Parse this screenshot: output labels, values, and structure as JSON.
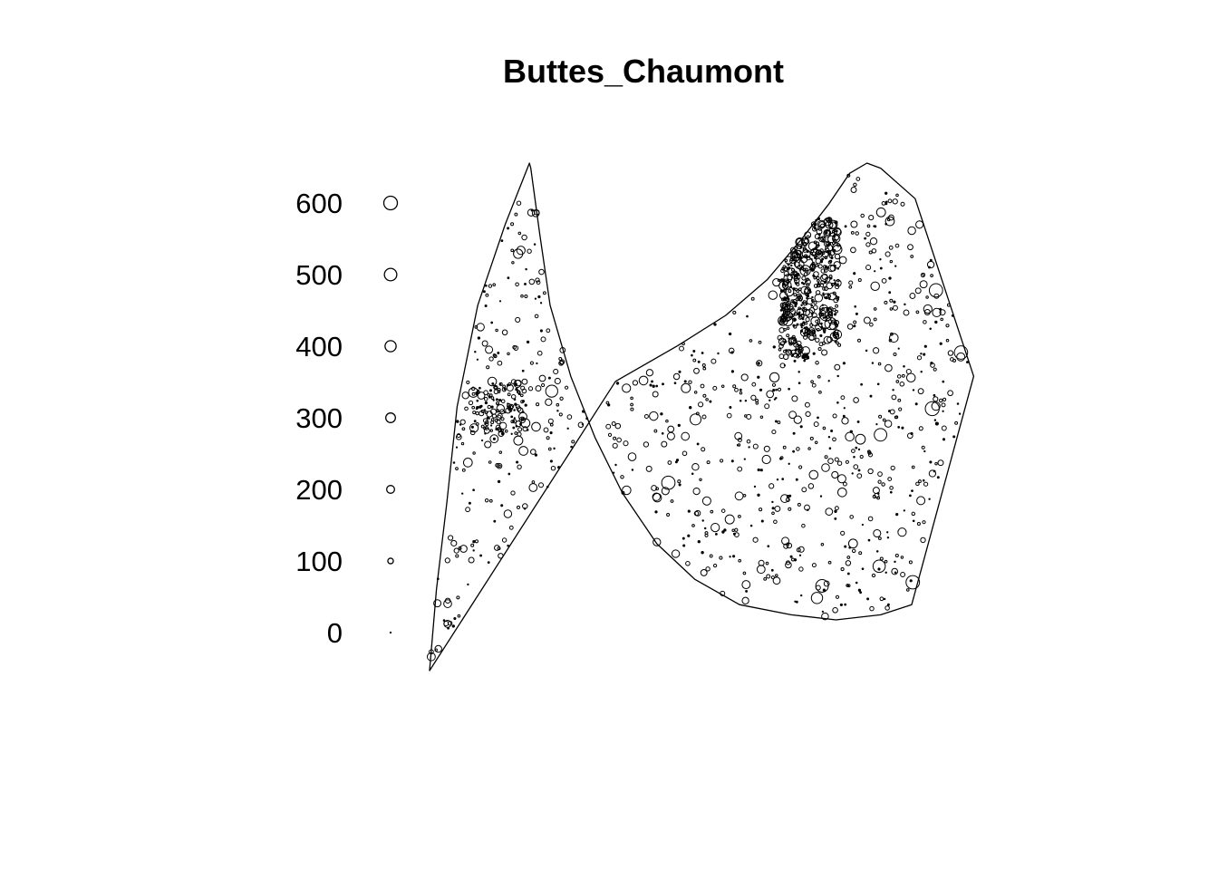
{
  "chart_data": {
    "type": "scatter",
    "title": "Buttes_Chaumont",
    "marks": "proportional circles (tree diameter)",
    "legend": {
      "placement": "left",
      "values": [
        0,
        100,
        200,
        300,
        400,
        500,
        600
      ],
      "labels": [
        "0",
        "100",
        "200",
        "300",
        "400",
        "500",
        "600"
      ]
    },
    "window_outline": [
      [
        0.0,
        0.0
      ],
      [
        0.01,
        0.16
      ],
      [
        0.025,
        0.33
      ],
      [
        0.04,
        0.52
      ],
      [
        0.07,
        0.72
      ],
      [
        0.11,
        0.88
      ],
      [
        0.145,
        1.0
      ],
      [
        0.147,
        0.99
      ],
      [
        0.16,
        0.86
      ],
      [
        0.175,
        0.72
      ],
      [
        0.205,
        0.58
      ],
      [
        0.24,
        0.46
      ],
      [
        0.28,
        0.35
      ],
      [
        0.33,
        0.25
      ],
      [
        0.385,
        0.18
      ],
      [
        0.45,
        0.13
      ],
      [
        0.525,
        0.11
      ],
      [
        0.59,
        0.1
      ],
      [
        0.655,
        0.11
      ],
      [
        0.7,
        0.13
      ],
      [
        0.79,
        0.58
      ],
      [
        0.705,
        0.93
      ],
      [
        0.655,
        0.99
      ],
      [
        0.635,
        1.0
      ],
      [
        0.61,
        0.98
      ],
      [
        0.58,
        0.92
      ],
      [
        0.54,
        0.85
      ],
      [
        0.49,
        0.77
      ],
      [
        0.43,
        0.7
      ],
      [
        0.36,
        0.64
      ],
      [
        0.27,
        0.57
      ]
    ],
    "point_count": 1450
  }
}
